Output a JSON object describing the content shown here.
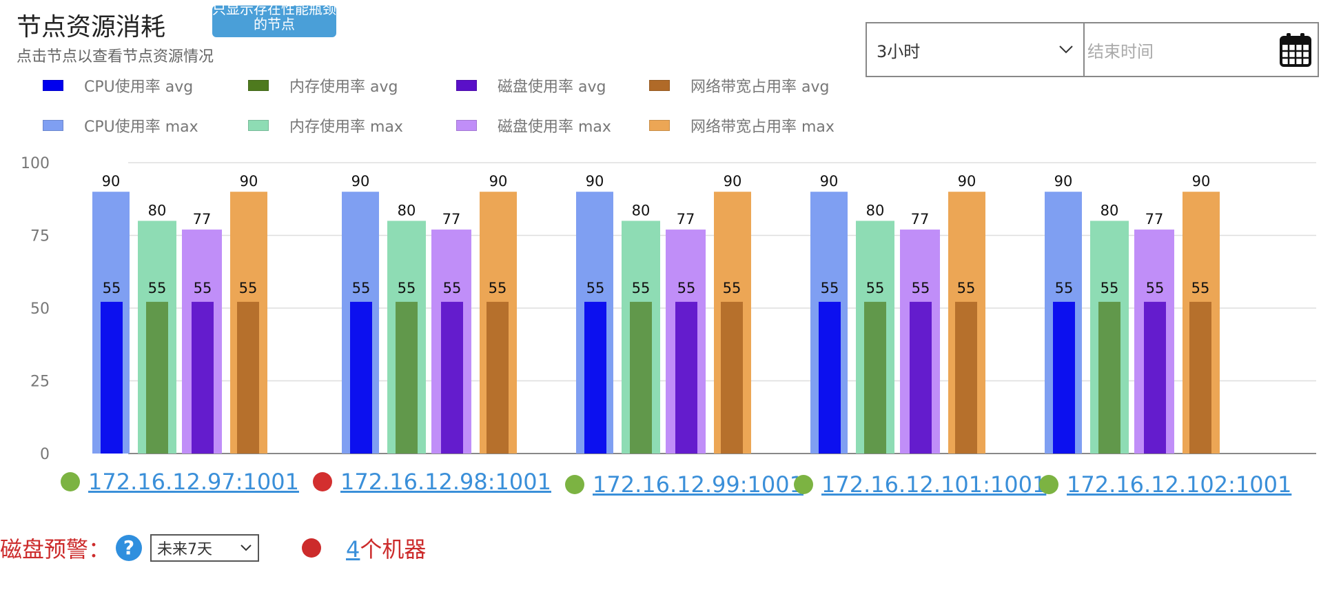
{
  "header": {
    "title": "节点资源消耗",
    "subtitle": "点击节点以查看节点资源情况",
    "filter_button": "只显示存在性能瓶颈的节点"
  },
  "controls": {
    "time_range": "3小时",
    "end_time_placeholder": "结束时间"
  },
  "legend": [
    {
      "label": "CPU使用率 avg",
      "color": "#0000ee"
    },
    {
      "label": "内存使用率 avg",
      "color": "#4e7a1e"
    },
    {
      "label": "磁盘使用率 avg",
      "color": "#5a10c8"
    },
    {
      "label": "网络带宽占用率 avg",
      "color": "#b06a28"
    },
    {
      "label": "CPU使用率 max",
      "color": "#7f9ff2"
    },
    {
      "label": "内存使用率 max",
      "color": "#8edcb4"
    },
    {
      "label": "磁盘使用率 max",
      "color": "#c08ef8"
    },
    {
      "label": "网络带宽占用率 max",
      "color": "#eca655"
    }
  ],
  "chart_data": {
    "type": "bar",
    "categories": [
      "172.16.12.97:1001",
      "172.16.12.98:1001",
      "172.16.12.99:1001",
      "172.16.12.101:1001",
      "172.16.12.102:1001"
    ],
    "series": [
      {
        "name": "CPU使用率 max",
        "values": [
          90,
          90,
          90,
          90,
          90
        ]
      },
      {
        "name": "内存使用率 max",
        "values": [
          80,
          80,
          80,
          80,
          80
        ]
      },
      {
        "name": "磁盘使用率 max",
        "values": [
          77,
          77,
          77,
          77,
          77
        ]
      },
      {
        "name": "网络带宽占用率 max",
        "values": [
          90,
          90,
          90,
          90,
          90
        ]
      },
      {
        "name": "CPU使用率 avg",
        "values": [
          55,
          55,
          55,
          55,
          55
        ]
      },
      {
        "name": "内存使用率 avg",
        "values": [
          55,
          55,
          55,
          55,
          55
        ]
      },
      {
        "name": "磁盘使用率 avg",
        "values": [
          55,
          55,
          55,
          55,
          55
        ]
      },
      {
        "name": "网络带宽占用率 avg",
        "values": [
          55,
          55,
          55,
          55,
          55
        ]
      }
    ],
    "ylim": [
      0,
      100
    ],
    "yticks": [
      "0",
      "25",
      "50",
      "75",
      "100"
    ],
    "grid": true,
    "legend_position": "top-left"
  },
  "nodes": [
    {
      "address": "172.16.12.97:1001",
      "status_color": "#7cb342"
    },
    {
      "address": "172.16.12.98:1001",
      "status_color": "#d32f2f"
    },
    {
      "address": "172.16.12.99:1001",
      "status_color": "#7cb342"
    },
    {
      "address": "172.16.12.101:1001",
      "status_color": "#7cb342"
    },
    {
      "address": "172.16.12.102:1001",
      "status_color": "#7cb342"
    }
  ],
  "disk_warning": {
    "label": "磁盘预警：",
    "help_icon": "?",
    "period": "未来7天",
    "count": "4",
    "count_suffix": "个机器"
  }
}
